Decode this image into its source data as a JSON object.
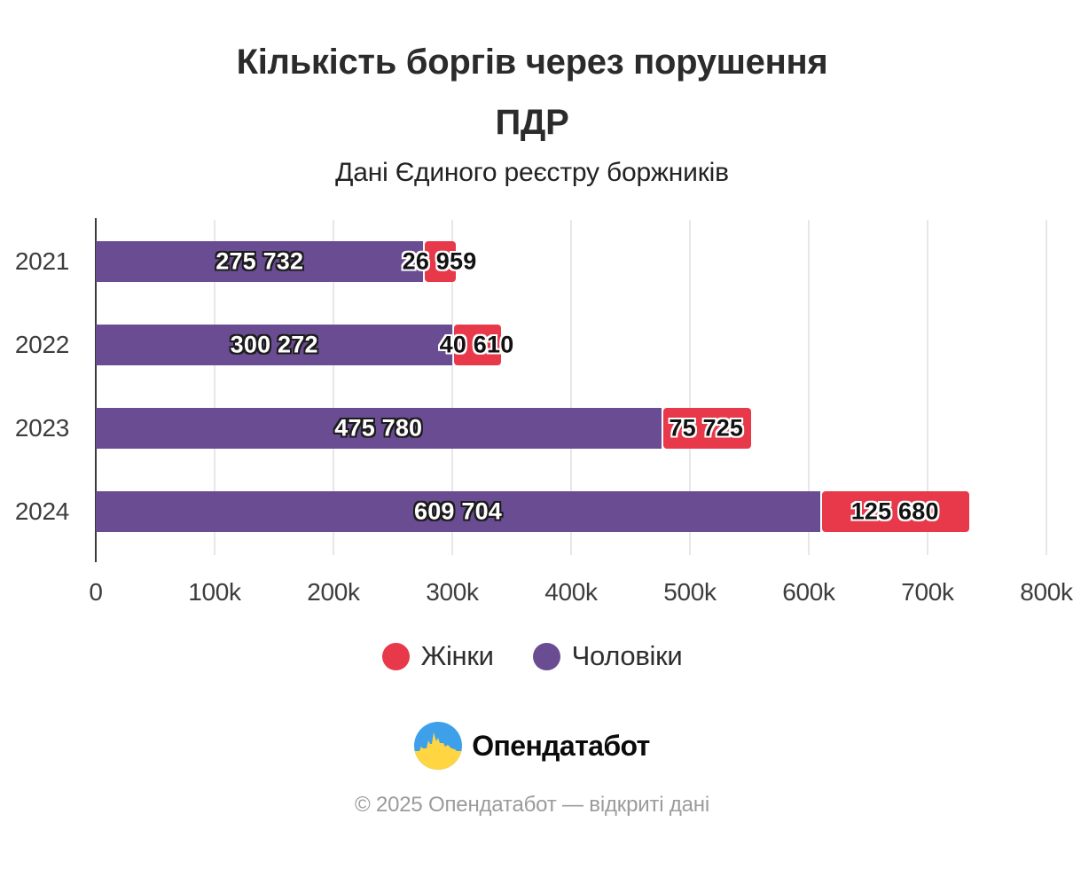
{
  "header": {
    "title_lines": [
      "Кількість боргів через порушення",
      "ПДР"
    ],
    "subtitle": "Дані Єдиного реєстру боржників"
  },
  "chart_data": {
    "type": "bar",
    "orientation": "horizontal",
    "stacked": true,
    "title": "Кількість боргів через порушення ПДР",
    "subtitle": "Дані Єдиного реєстру боржників",
    "categories": [
      "2021",
      "2022",
      "2023",
      "2024"
    ],
    "series": [
      {
        "name": "Чоловіки",
        "color": "#6a4c93",
        "values": [
          275732,
          300272,
          475780,
          609704
        ],
        "value_labels": [
          "275 732",
          "300 272",
          "475 780",
          "609 704"
        ]
      },
      {
        "name": "Жінки",
        "color": "#e8394a",
        "values": [
          26959,
          40610,
          75725,
          125680
        ],
        "value_labels": [
          "26 959",
          "40 610",
          "75 725",
          "125 680"
        ]
      }
    ],
    "xlim": [
      0,
      800000
    ],
    "x_tick_labels": [
      "0",
      "100k",
      "200k",
      "300k",
      "400k",
      "500k",
      "600k",
      "700k",
      "800k"
    ],
    "grid": true,
    "legend": {
      "position": "bottom",
      "items": [
        {
          "label": "Жінки",
          "color": "#e8394a"
        },
        {
          "label": "Чоловіки",
          "color": "#6a4c93"
        }
      ]
    }
  },
  "footer": {
    "brand": "Опендатабот",
    "copyright": "© 2025 Опендатабот — відкриті дані"
  },
  "colors": {
    "men_purple": "#6a4c93",
    "women_red": "#e8394a",
    "grid_line": "#e7e7e7",
    "axis_line": "#3a3a3a",
    "logo_blue": "#3fa0ea",
    "logo_yellow": "#ffd542",
    "text_dark": "#2b2b2b",
    "text_muted": "#9b9b9b"
  }
}
